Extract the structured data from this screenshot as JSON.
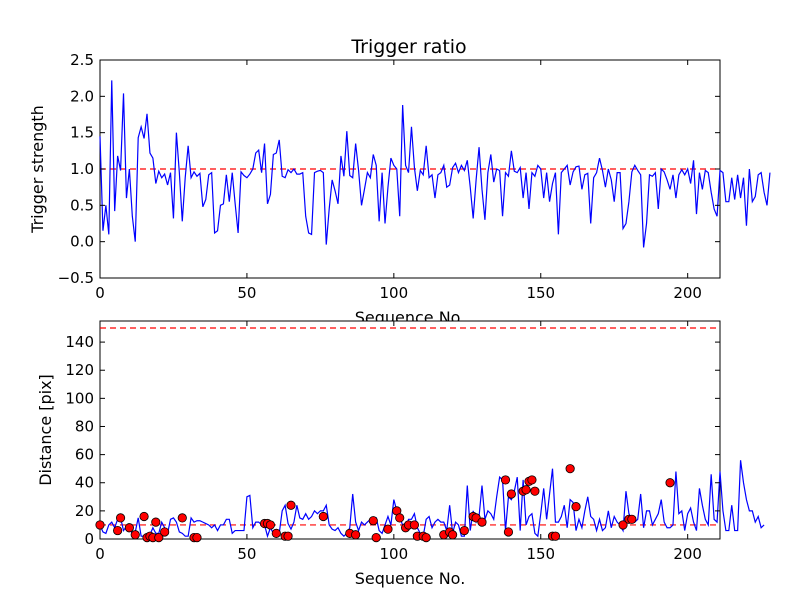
{
  "chart_data": [
    {
      "type": "line",
      "title": "Trigger ratio",
      "xlabel": "Sequence No.",
      "ylabel": "Trigger strength",
      "xlim": [
        0,
        211
      ],
      "ylim": [
        -0.5,
        2.5
      ],
      "x_ticks": [
        0,
        50,
        100,
        150,
        200
      ],
      "x_tick_labels": [
        "0",
        "50",
        "100",
        "150",
        "200"
      ],
      "y_ticks": [
        -0.5,
        0,
        0.5,
        1.0,
        1.5,
        2.0,
        2.5
      ],
      "y_tick_labels": [
        "−0.5",
        "0.0",
        "0.5",
        "1.0",
        "1.5",
        "2.0",
        "2.5"
      ],
      "threshold": 1.0,
      "colors": {
        "line": "#0000ff",
        "threshold": "#ff0000"
      },
      "series": [
        {
          "name": "trigger strength",
          "values": [
            1.45,
            0.15,
            0.5,
            0.1,
            2.22,
            0.42,
            1.18,
            0.98,
            2.04,
            0.6,
            1.0,
            0.35,
            0.0,
            1.43,
            1.58,
            1.42,
            1.76,
            1.22,
            1.15,
            0.8,
            0.97,
            0.88,
            0.93,
            0.78,
            0.95,
            0.32,
            1.5,
            0.95,
            0.28,
            0.88,
            1.32,
            0.88,
            0.96,
            0.9,
            0.94,
            0.48,
            0.58,
            0.92,
            0.95,
            0.12,
            0.15,
            0.5,
            0.52,
            0.92,
            0.55,
            0.95,
            0.52,
            0.12,
            0.96,
            0.91,
            0.88,
            0.93,
            1.0,
            1.22,
            1.26,
            0.95,
            1.35,
            0.52,
            0.65,
            1.2,
            1.22,
            1.4,
            0.9,
            0.88,
            0.99,
            0.95,
            1.0,
            0.93,
            0.93,
            0.95,
            0.35,
            0.12,
            0.1,
            0.95,
            0.97,
            0.98,
            0.95,
            -0.04,
            0.45,
            0.85,
            0.7,
            0.52,
            1.18,
            0.9,
            1.52,
            0.91,
            0.88,
            1.35,
            0.98,
            0.5,
            0.72,
            0.95,
            0.88,
            1.2,
            1.05,
            0.28,
            0.95,
            0.25,
            0.75,
            1.15,
            1.05,
            1.0,
            0.35,
            1.88,
            1.05,
            0.95,
            1.58,
            1.02,
            0.7,
            0.98,
            0.92,
            1.32,
            0.88,
            0.92,
            0.6,
            0.92,
            0.95,
            1.05,
            0.75,
            0.78,
            1.02,
            1.08,
            0.95,
            1.05,
            0.98,
            1.12,
            0.75,
            0.32,
            0.85,
            1.3,
            0.72,
            0.3,
            0.95,
            1.2,
            0.82,
            1.0,
            0.98,
            0.35,
            0.95,
            0.9,
            1.25,
            0.97,
            0.95,
            1.02,
            0.6,
            0.95,
            0.45,
            0.95,
            0.9,
            1.05,
            1.0,
            0.6,
            0.95,
            0.55,
            0.8,
            0.95,
            0.1,
            0.95,
            1.0,
            1.05,
            0.78,
            0.96,
            1.03,
            1.04,
            0.72,
            0.92,
            0.94,
            0.25,
            0.88,
            0.95,
            1.15,
            0.98,
            0.75,
            1.0,
            0.85,
            0.55,
            0.95,
            0.95,
            0.18,
            0.25,
            0.55,
            0.96,
            1.05,
            0.98,
            0.92,
            -0.08,
            0.25,
            0.92,
            0.9,
            0.95,
            0.45,
            1.0,
            0.96,
            0.85,
            0.72,
            0.92,
            0.6,
            0.92,
            0.99,
            0.92,
            1.0,
            0.8,
            1.12,
            0.38,
            0.95,
            0.72,
            0.98,
            0.95,
            0.68,
            0.45,
            0.35,
            0.98,
            0.95,
            0.55,
            0.55,
            0.88,
            0.58,
            0.92,
            0.6,
            0.88,
            0.22,
            1.0,
            0.55,
            0.62,
            0.92,
            0.95,
            0.68,
            0.5,
            0.95
          ]
        }
      ]
    },
    {
      "type": "line",
      "title": "",
      "xlabel": "Sequence No.",
      "ylabel": "Distance [pix]",
      "xlim": [
        0,
        211
      ],
      "ylim": [
        0,
        155
      ],
      "x_ticks": [
        0,
        50,
        100,
        150,
        200
      ],
      "x_tick_labels": [
        "0",
        "50",
        "100",
        "150",
        "200"
      ],
      "y_ticks": [
        0,
        20,
        40,
        60,
        80,
        100,
        120,
        140
      ],
      "y_tick_labels": [
        "0",
        "20",
        "40",
        "60",
        "80",
        "100",
        "120",
        "140"
      ],
      "thresholds": [
        10,
        150
      ],
      "colors": {
        "line": "#0000ff",
        "threshold": "#ff0000",
        "marker": "#ff0000",
        "marker_edge": "#000000"
      },
      "series": [
        {
          "name": "distance",
          "values": [
            10,
            5,
            4,
            10,
            12,
            8,
            14,
            15,
            6,
            9,
            10,
            3,
            5,
            15,
            2,
            2,
            2,
            3,
            8,
            4,
            4,
            12,
            8,
            4,
            14,
            15,
            12,
            5,
            4,
            2,
            2,
            15,
            12,
            13,
            13,
            12,
            11,
            10,
            8,
            10,
            6,
            10,
            10,
            14,
            14,
            4,
            6,
            6,
            6,
            6,
            30,
            31,
            8,
            12,
            12,
            10,
            10,
            2,
            8,
            4,
            6,
            4,
            20,
            24,
            11,
            7,
            12,
            24,
            15,
            14,
            18,
            14,
            16,
            20,
            18,
            20,
            20,
            24,
            10,
            7,
            6,
            8,
            4,
            2,
            4,
            8,
            32,
            12,
            6,
            12,
            10,
            12,
            14,
            14,
            15,
            6,
            4,
            10,
            16,
            10,
            28,
            20,
            15,
            10,
            8,
            14,
            14,
            18,
            8,
            4,
            2,
            14,
            16,
            8,
            12,
            14,
            12,
            12,
            6,
            24,
            4,
            12,
            10,
            2,
            2,
            38,
            6,
            20,
            12,
            16,
            38,
            14,
            20,
            18,
            14,
            30,
            44,
            42,
            6,
            30,
            28,
            34,
            44,
            6,
            42,
            10,
            16,
            18,
            4,
            2,
            18,
            36,
            14,
            32,
            50,
            12,
            12,
            16,
            24,
            8,
            28,
            26,
            6,
            14,
            8,
            20,
            30,
            16,
            14,
            6,
            14,
            6,
            8,
            20,
            8,
            16,
            12,
            10,
            6,
            34,
            18,
            14,
            12,
            14,
            32,
            8,
            20,
            20,
            10,
            14,
            18,
            28,
            12,
            8,
            8,
            10,
            48,
            18,
            20,
            6,
            18,
            22,
            12,
            6,
            36,
            24,
            14,
            10,
            46,
            14,
            12,
            48,
            20,
            6,
            6,
            24,
            6,
            6,
            56,
            40,
            28,
            20,
            20,
            12,
            16,
            8,
            10
          ]
        }
      ],
      "markers": {
        "x": [
          0,
          6,
          7,
          10,
          12,
          15,
          16,
          17,
          18,
          19,
          20,
          22,
          28,
          32,
          33,
          56,
          57,
          58,
          60,
          63,
          64,
          65,
          76,
          85,
          87,
          93,
          94,
          98,
          101,
          102,
          104,
          105,
          107,
          108,
          110,
          111,
          117,
          119,
          120,
          124,
          127,
          128,
          130,
          138,
          139,
          140,
          144,
          145,
          146,
          147,
          148,
          154,
          155,
          160,
          162,
          178,
          180,
          181,
          194
        ],
        "y": [
          10,
          6,
          15,
          8,
          3,
          16,
          1,
          2,
          1,
          12,
          1,
          5,
          15,
          1,
          1,
          11,
          11,
          10,
          4,
          2,
          2,
          24,
          16,
          4,
          3,
          13,
          1,
          7,
          20,
          15,
          8,
          10,
          10,
          2,
          2,
          1,
          3,
          5,
          3,
          6,
          16,
          15,
          12,
          42,
          5,
          32,
          34,
          35,
          41,
          42,
          34,
          2,
          2,
          50,
          23,
          10,
          14,
          14,
          40
        ]
      }
    }
  ]
}
